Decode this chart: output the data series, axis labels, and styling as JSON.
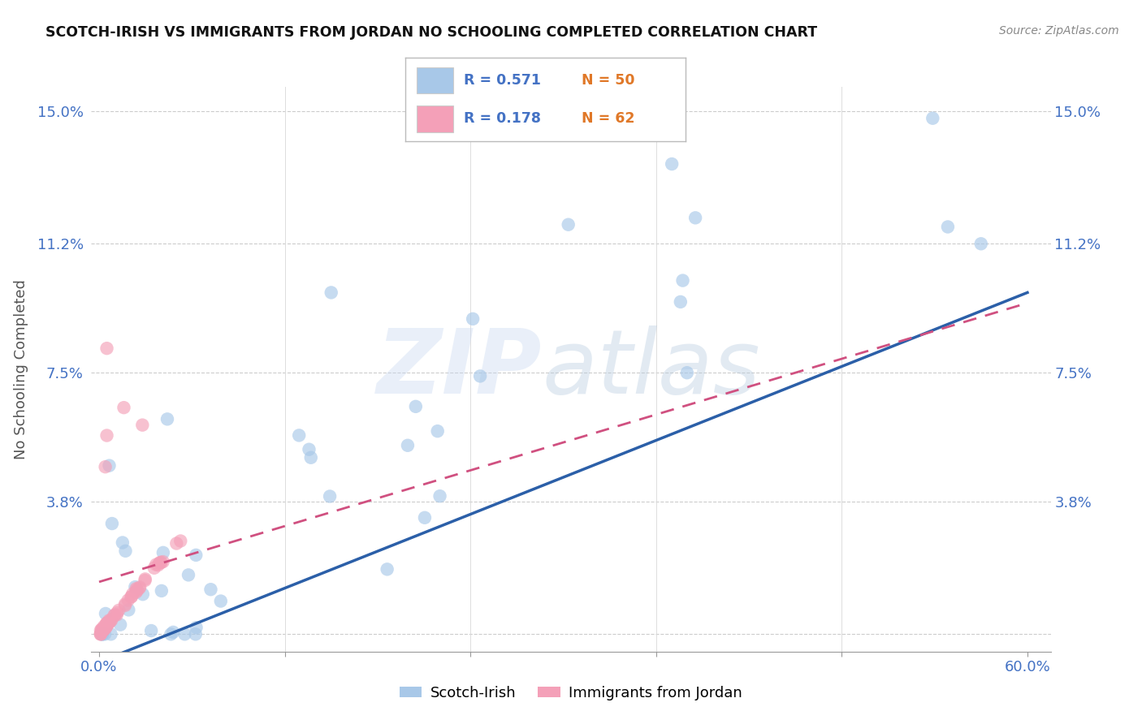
{
  "title": "SCOTCH-IRISH VS IMMIGRANTS FROM JORDAN NO SCHOOLING COMPLETED CORRELATION CHART",
  "source": "Source: ZipAtlas.com",
  "ylabel": "No Schooling Completed",
  "xlim_min": -0.005,
  "xlim_max": 0.615,
  "ylim_min": -0.005,
  "ylim_max": 0.157,
  "xtick_positions": [
    0.0,
    0.12,
    0.24,
    0.36,
    0.48,
    0.6
  ],
  "xtick_labels": [
    "0.0%",
    "",
    "",
    "",
    "",
    "60.0%"
  ],
  "ytick_positions": [
    0.0,
    0.038,
    0.075,
    0.112,
    0.15
  ],
  "ytick_labels": [
    "",
    "3.8%",
    "7.5%",
    "11.2%",
    "15.0%"
  ],
  "color_blue": "#a8c8e8",
  "color_pink": "#f4a0b8",
  "line_color_blue": "#2b5fa8",
  "line_color_pink": "#d05080",
  "R1": "0.571",
  "N1": "50",
  "R2": "0.178",
  "N2": "62",
  "tick_color": "#4472c4",
  "source_color": "#888888",
  "title_color": "#111111",
  "legend_label1": "Scotch-Irish",
  "legend_label2": "Immigrants from Jordan"
}
